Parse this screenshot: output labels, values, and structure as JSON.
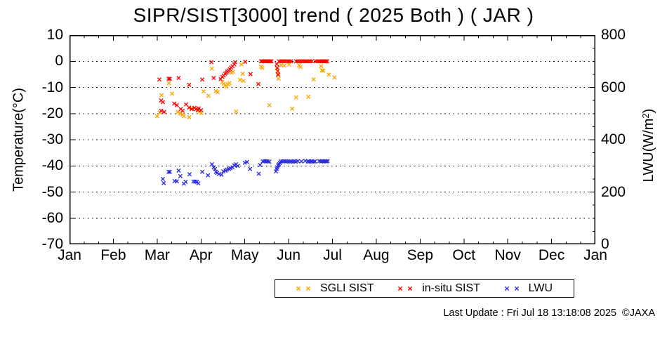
{
  "chart_data": {
    "type": "scatter",
    "title": "SIPR/SIST[3000] trend ( 2025 Both ) ( JAR )",
    "footer": "Last Update : Fri Jul 18 13:18:08 2025  ©JAXA",
    "background": "#ffffff",
    "grid": {
      "style": "dotted-horizontal",
      "lines_at_temp": [
        0,
        -10,
        -20,
        -30,
        -40,
        -50,
        -60
      ]
    },
    "axes": {
      "x": {
        "tick_labels": [
          "Jan",
          "Feb",
          "Mar",
          "Apr",
          "May",
          "Jun",
          "Jul",
          "Aug",
          "Sep",
          "Oct",
          "Nov",
          "Dec",
          "Jan"
        ],
        "minor_ticks_per_month": 2,
        "range_months": [
          0,
          12
        ]
      },
      "temp": {
        "label": "Temperature(°C)",
        "ticks": [
          10,
          0,
          -10,
          -20,
          -30,
          -40,
          -50,
          -60,
          -70
        ],
        "range": [
          -70,
          10
        ],
        "side": "left"
      },
      "lwu": {
        "label_main": "LWU(W/m",
        "label_sup": "2",
        "label_close": ")",
        "ticks": [
          800,
          600,
          400,
          200,
          0
        ],
        "minor_step": 50,
        "range": [
          0,
          800
        ],
        "side": "right"
      }
    },
    "legend": {
      "position": "bottom-center",
      "marker": "x-cross"
    },
    "series": [
      {
        "name": "SGLI SIST",
        "color": "#ffa500",
        "axis": "temp",
        "units": "°C",
        "points": [
          [
            2.0,
            -21.0
          ],
          [
            2.06,
            -19.6
          ],
          [
            2.1,
            -13.0
          ],
          [
            2.27,
            -8.4
          ],
          [
            2.34,
            -12.4
          ],
          [
            2.47,
            -19.4
          ],
          [
            2.53,
            -20.0
          ],
          [
            2.58,
            -20.4
          ],
          [
            2.61,
            -21.0
          ],
          [
            2.73,
            -21.4
          ],
          [
            2.79,
            -18.0
          ],
          [
            2.93,
            -18.9
          ],
          [
            2.97,
            -19.3
          ],
          [
            3.01,
            -19.8
          ],
          [
            3.06,
            -11.5
          ],
          [
            3.17,
            -13.2
          ],
          [
            3.25,
            -2.8
          ],
          [
            3.34,
            -11.4
          ],
          [
            3.38,
            -11.8
          ],
          [
            3.49,
            -8.0
          ],
          [
            3.52,
            -8.6
          ],
          [
            3.55,
            -9.2
          ],
          [
            3.58,
            -9.7
          ],
          [
            3.62,
            -8.8
          ],
          [
            3.65,
            -8.3
          ],
          [
            3.7,
            -4.4
          ],
          [
            3.73,
            -4.0
          ],
          [
            3.8,
            -19.2
          ],
          [
            3.89,
            -7.1
          ],
          [
            3.92,
            -1.2
          ],
          [
            3.95,
            -4.8
          ],
          [
            3.97,
            -7.5
          ],
          [
            4.37,
            -2.1
          ],
          [
            4.4,
            -2.5
          ],
          [
            4.56,
            -16.8
          ],
          [
            4.73,
            -2.7
          ],
          [
            4.76,
            -4.8
          ],
          [
            4.77,
            -6.7
          ],
          [
            4.83,
            -1.5
          ],
          [
            4.9,
            -1.7
          ],
          [
            5.01,
            -1.2
          ],
          [
            5.08,
            -18.1
          ],
          [
            5.17,
            -13.8
          ],
          [
            5.24,
            -1.6
          ],
          [
            5.27,
            -2.2
          ],
          [
            5.45,
            -13.6
          ],
          [
            5.57,
            -6.9
          ],
          [
            5.74,
            -1.9
          ],
          [
            5.76,
            -3.5
          ],
          [
            5.79,
            -3.6
          ],
          [
            5.92,
            -5.1
          ],
          [
            6.05,
            -6.2
          ]
        ]
      },
      {
        "name": "in-situ SIST",
        "color": "#ff0000",
        "axis": "temp",
        "units": "°C",
        "points": [
          [
            2.05,
            -7.0
          ],
          [
            2.09,
            -15.0
          ],
          [
            2.09,
            -18.9
          ],
          [
            2.13,
            -15.6
          ],
          [
            2.16,
            -19.4
          ],
          [
            2.26,
            -6.7
          ],
          [
            2.29,
            -6.7
          ],
          [
            2.39,
            -16.2
          ],
          [
            2.45,
            -16.8
          ],
          [
            2.49,
            -6.4
          ],
          [
            2.54,
            -18.3
          ],
          [
            2.58,
            -18.9
          ],
          [
            2.66,
            -16.5
          ],
          [
            2.73,
            -9.0
          ],
          [
            2.73,
            -17.7
          ],
          [
            2.79,
            -18.3
          ],
          [
            2.85,
            -17.8
          ],
          [
            2.89,
            -18.3
          ],
          [
            2.93,
            -18.6
          ],
          [
            2.95,
            -18.0
          ],
          [
            3.0,
            -18.7
          ],
          [
            3.03,
            -7.0
          ],
          [
            3.24,
            -0.3
          ],
          [
            3.29,
            -6.4
          ],
          [
            3.45,
            -6.8
          ],
          [
            3.49,
            -6.0
          ],
          [
            3.52,
            -5.4
          ],
          [
            3.55,
            -4.8
          ],
          [
            3.58,
            -4.4
          ],
          [
            3.6,
            -3.9
          ],
          [
            3.63,
            -3.5
          ],
          [
            3.66,
            -3.0
          ],
          [
            3.69,
            -2.4
          ],
          [
            3.72,
            -1.9
          ],
          [
            3.76,
            -1.2
          ],
          [
            3.78,
            -0.3
          ],
          [
            4.01,
            -0.2
          ],
          [
            4.13,
            -4.9
          ],
          [
            4.31,
            -8.7
          ],
          [
            4.37,
            0
          ],
          [
            4.4,
            0
          ],
          [
            4.43,
            0
          ],
          [
            4.46,
            0
          ],
          [
            4.49,
            0
          ],
          [
            4.52,
            0
          ],
          [
            4.55,
            0
          ],
          [
            4.58,
            0
          ],
          [
            4.61,
            0
          ],
          [
            4.73,
            -1.1
          ],
          [
            4.74,
            -2.5
          ],
          [
            4.75,
            -3.8
          ],
          [
            4.76,
            -5.2
          ],
          [
            4.78,
            0
          ],
          [
            4.82,
            0
          ],
          [
            4.86,
            0
          ],
          [
            4.9,
            0
          ],
          [
            4.94,
            0
          ],
          [
            4.98,
            0
          ],
          [
            5.02,
            0
          ],
          [
            5.06,
            0
          ],
          [
            5.17,
            0
          ],
          [
            5.21,
            0
          ],
          [
            5.25,
            0
          ],
          [
            5.29,
            0
          ],
          [
            5.33,
            0
          ],
          [
            5.37,
            0
          ],
          [
            5.41,
            0
          ],
          [
            5.45,
            0
          ],
          [
            5.49,
            0
          ],
          [
            5.53,
            0
          ],
          [
            5.62,
            0
          ],
          [
            5.66,
            0
          ],
          [
            5.7,
            0
          ],
          [
            5.73,
            0
          ],
          [
            5.76,
            0
          ],
          [
            5.79,
            0
          ],
          [
            5.82,
            0
          ],
          [
            5.85,
            0
          ],
          [
            5.88,
            0
          ]
        ]
      },
      {
        "name": "LWU",
        "color": "#2929e0",
        "axis": "lwu",
        "units": "W/m2",
        "points": [
          [
            2.13,
            250
          ],
          [
            2.15,
            234
          ],
          [
            2.26,
            277
          ],
          [
            2.29,
            277
          ],
          [
            2.4,
            242
          ],
          [
            2.45,
            241
          ],
          [
            2.49,
            282
          ],
          [
            2.53,
            261
          ],
          [
            2.61,
            232
          ],
          [
            2.65,
            239
          ],
          [
            2.74,
            268
          ],
          [
            2.83,
            240
          ],
          [
            2.87,
            240
          ],
          [
            2.91,
            239
          ],
          [
            2.94,
            233
          ],
          [
            3.03,
            277
          ],
          [
            3.16,
            264
          ],
          [
            3.25,
            306
          ],
          [
            3.29,
            294
          ],
          [
            3.32,
            288
          ],
          [
            3.34,
            277
          ],
          [
            3.37,
            273
          ],
          [
            3.41,
            269
          ],
          [
            3.47,
            266
          ],
          [
            3.51,
            279
          ],
          [
            3.56,
            282
          ],
          [
            3.59,
            286
          ],
          [
            3.64,
            288
          ],
          [
            3.67,
            291
          ],
          [
            3.72,
            294
          ],
          [
            3.76,
            302
          ],
          [
            3.8,
            306
          ],
          [
            3.84,
            300
          ],
          [
            4.0,
            312
          ],
          [
            4.05,
            315
          ],
          [
            4.12,
            288
          ],
          [
            4.32,
            270
          ],
          [
            4.35,
            303
          ],
          [
            4.41,
            317
          ],
          [
            4.45,
            318
          ],
          [
            4.49,
            318
          ],
          [
            4.52,
            317
          ],
          [
            4.56,
            316
          ],
          [
            4.71,
            279
          ],
          [
            4.73,
            288
          ],
          [
            4.74,
            294
          ],
          [
            4.76,
            302
          ],
          [
            4.78,
            306
          ],
          [
            4.8,
            311
          ],
          [
            4.82,
            317
          ],
          [
            4.86,
            317
          ],
          [
            4.9,
            318
          ],
          [
            4.94,
            317
          ],
          [
            4.98,
            317
          ],
          [
            5.02,
            317
          ],
          [
            5.06,
            317
          ],
          [
            5.1,
            316
          ],
          [
            5.13,
            318
          ],
          [
            5.16,
            316
          ],
          [
            5.21,
            318
          ],
          [
            5.29,
            317
          ],
          [
            5.38,
            319
          ],
          [
            5.44,
            317
          ],
          [
            5.47,
            316
          ],
          [
            5.5,
            317
          ],
          [
            5.53,
            318
          ],
          [
            5.57,
            316
          ],
          [
            5.6,
            317
          ],
          [
            5.7,
            318
          ],
          [
            5.74,
            317
          ],
          [
            5.77,
            318
          ],
          [
            5.8,
            317
          ],
          [
            5.83,
            318
          ],
          [
            5.86,
            317
          ],
          [
            5.89,
            318
          ]
        ]
      }
    ]
  }
}
